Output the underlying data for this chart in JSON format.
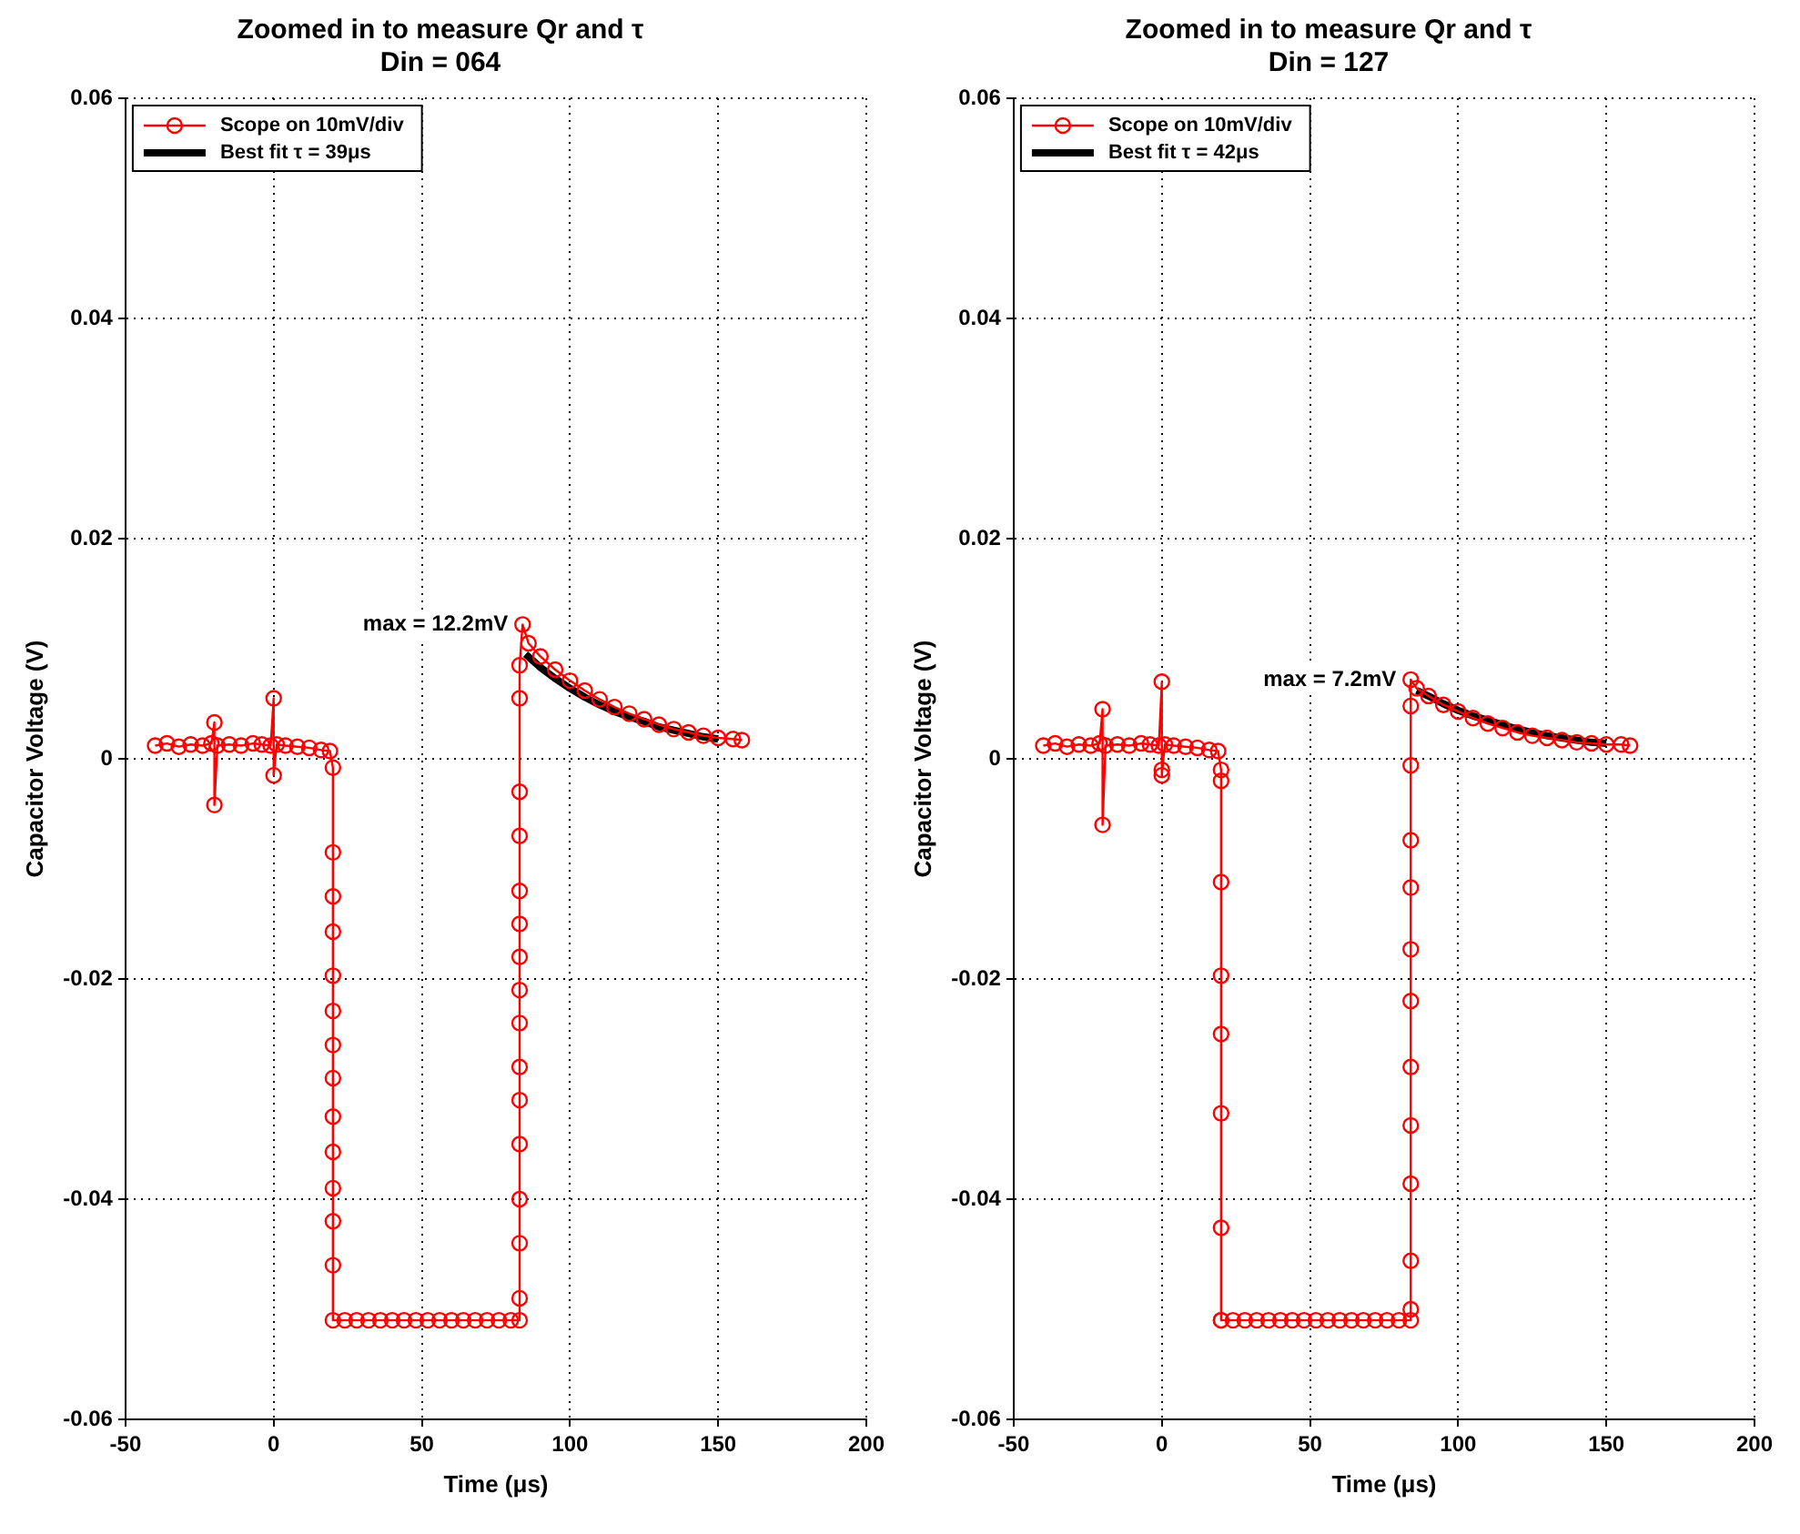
{
  "chart_data": [
    {
      "type": "line",
      "title": "Zoomed in to measure Qr and τ",
      "subtitle": "Din = 064",
      "xlabel": "Time (μs)",
      "ylabel": "Capacitor Voltage (V)",
      "xlim": [
        -50,
        200
      ],
      "xticks": [
        -50,
        0,
        50,
        100,
        150,
        200
      ],
      "ylim": [
        -0.06,
        0.06
      ],
      "yticks": [
        -0.06,
        -0.04,
        -0.02,
        0,
        0.02,
        0.04,
        0.06
      ],
      "grid": true,
      "legend": "top left",
      "line_style": "solid",
      "annotations": [
        {
          "text": "max = 12.2mV",
          "x": 84,
          "y": 0.0122
        }
      ],
      "series": [
        {
          "name": "Scope on 10mV/div",
          "color": "#ff0000",
          "marker": "circle",
          "x": [
            -40,
            -36,
            -32,
            -28,
            -24,
            -21,
            -20,
            -20,
            -19,
            -15,
            -11,
            -7,
            -4,
            -1,
            0,
            0,
            1,
            4,
            8,
            12,
            16,
            19,
            20,
            20,
            20,
            20,
            20,
            20,
            20,
            20,
            20,
            20,
            20,
            20,
            20,
            20,
            24,
            28,
            32,
            36,
            40,
            44,
            48,
            52,
            56,
            60,
            64,
            68,
            72,
            76,
            80,
            83,
            83,
            83,
            83,
            83,
            83,
            83,
            83,
            83,
            83,
            83,
            83,
            83,
            83,
            83,
            83,
            84,
            86,
            90,
            95,
            100,
            105,
            110,
            115,
            120,
            125,
            130,
            135,
            140,
            145,
            150,
            155,
            158
          ],
          "values": [
            0.0012,
            0.0014,
            0.0011,
            0.0013,
            0.0012,
            0.0014,
            0.0033,
            -0.0042,
            0.0012,
            0.0013,
            0.0012,
            0.0014,
            0.0013,
            0.0012,
            0.0055,
            -0.0015,
            0.0013,
            0.0012,
            0.0011,
            0.001,
            0.0008,
            0.0007,
            -0.0008,
            -0.0085,
            -0.0125,
            -0.0157,
            -0.0197,
            -0.0229,
            -0.026,
            -0.029,
            -0.0325,
            -0.0357,
            -0.039,
            -0.042,
            -0.046,
            -0.051,
            -0.051,
            -0.051,
            -0.051,
            -0.051,
            -0.051,
            -0.051,
            -0.051,
            -0.051,
            -0.051,
            -0.051,
            -0.051,
            -0.051,
            -0.051,
            -0.051,
            -0.051,
            -0.051,
            -0.049,
            -0.044,
            -0.04,
            -0.035,
            -0.031,
            -0.028,
            -0.024,
            -0.021,
            -0.018,
            -0.015,
            -0.012,
            -0.007,
            -0.003,
            0.0055,
            0.0085,
            0.0122,
            0.0105,
            0.0093,
            0.0081,
            0.0071,
            0.0062,
            0.0054,
            0.0047,
            0.0041,
            0.0036,
            0.0031,
            0.0027,
            0.0024,
            0.0021,
            0.0019,
            0.0018,
            0.0017
          ]
        },
        {
          "name": "Best fit τ = 39μs",
          "color": "#000000",
          "marker": "none",
          "x": [
            85,
            90,
            95,
            100,
            105,
            110,
            115,
            120,
            125,
            130,
            135,
            140,
            145,
            150
          ],
          "values": [
            0.0095,
            0.0083,
            0.0073,
            0.0064,
            0.0056,
            0.0049,
            0.0043,
            0.0038,
            0.0034,
            0.0029,
            0.0026,
            0.0023,
            0.002,
            0.0018
          ]
        }
      ]
    },
    {
      "type": "line",
      "title": "Zoomed in to measure Qr and τ",
      "subtitle": "Din = 127",
      "xlabel": "Time (μs)",
      "ylabel": "Capacitor Voltage (V)",
      "xlim": [
        -50,
        200
      ],
      "xticks": [
        -50,
        0,
        50,
        100,
        150,
        200
      ],
      "ylim": [
        -0.06,
        0.06
      ],
      "yticks": [
        -0.06,
        -0.04,
        -0.02,
        0,
        0.02,
        0.04,
        0.06
      ],
      "grid": true,
      "legend": "top left",
      "line_style": "solid",
      "annotations": [
        {
          "text": "max = 7.2mV",
          "x": 84,
          "y": 0.0072
        }
      ],
      "series": [
        {
          "name": "Scope on 10mV/div",
          "color": "#ff0000",
          "marker": "circle",
          "x": [
            -40,
            -36,
            -32,
            -28,
            -24,
            -21,
            -20,
            -20,
            -19,
            -15,
            -11,
            -7,
            -4,
            -1,
            0,
            0,
            0,
            1,
            4,
            8,
            12,
            16,
            19,
            20,
            20,
            20,
            20,
            20,
            20,
            20,
            20,
            20,
            24,
            28,
            32,
            36,
            40,
            44,
            48,
            52,
            56,
            60,
            64,
            68,
            72,
            76,
            80,
            84,
            84,
            84,
            84,
            84,
            84,
            84,
            84,
            84,
            84,
            84,
            84,
            84,
            86,
            90,
            95,
            100,
            105,
            110,
            115,
            120,
            125,
            130,
            135,
            140,
            145,
            150,
            155,
            158
          ],
          "values": [
            0.0012,
            0.0014,
            0.0011,
            0.0013,
            0.0012,
            0.0014,
            0.0045,
            -0.006,
            0.0012,
            0.0013,
            0.0012,
            0.0014,
            0.0013,
            0.0012,
            0.007,
            -0.001,
            -0.0015,
            0.0013,
            0.0012,
            0.0011,
            0.001,
            0.0008,
            0.0007,
            -0.001,
            -0.002,
            -0.0112,
            -0.0197,
            -0.025,
            -0.0322,
            -0.0426,
            -0.051,
            -0.051,
            -0.051,
            -0.051,
            -0.051,
            -0.051,
            -0.051,
            -0.051,
            -0.051,
            -0.051,
            -0.051,
            -0.051,
            -0.051,
            -0.051,
            -0.051,
            -0.051,
            -0.051,
            -0.051,
            -0.05,
            -0.0456,
            -0.0386,
            -0.0333,
            -0.028,
            -0.022,
            -0.0173,
            -0.0117,
            -0.0074,
            -0.0006,
            0.0048,
            0.0072,
            0.0064,
            0.0057,
            0.0049,
            0.0043,
            0.0037,
            0.0032,
            0.0028,
            0.0024,
            0.0021,
            0.0019,
            0.0017,
            0.0015,
            0.0014,
            0.0013,
            0.0013,
            0.0012
          ]
        },
        {
          "name": "Best fit τ = 42μs",
          "color": "#000000",
          "marker": "none",
          "x": [
            86,
            90,
            95,
            100,
            105,
            110,
            115,
            120,
            125,
            130,
            135,
            140,
            145,
            150
          ],
          "values": [
            0.0062,
            0.0057,
            0.005,
            0.0044,
            0.0039,
            0.0035,
            0.0031,
            0.0027,
            0.0024,
            0.0021,
            0.0019,
            0.0017,
            0.0015,
            0.0014
          ]
        }
      ]
    }
  ]
}
